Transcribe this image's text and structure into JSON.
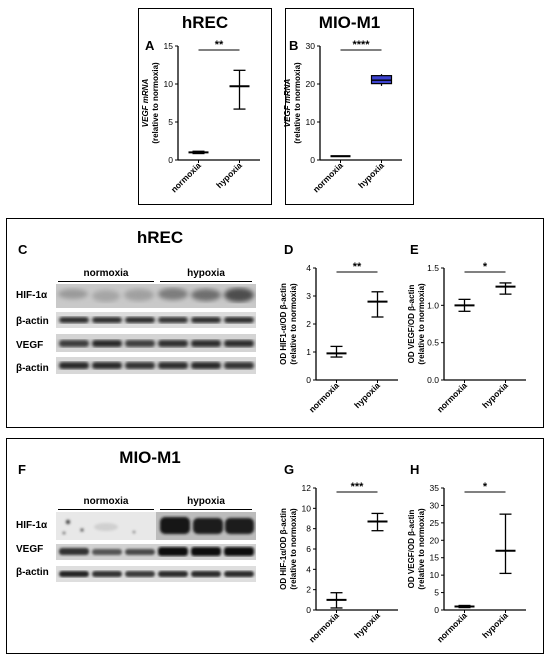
{
  "top": {
    "hrec": {
      "title": "hREC"
    },
    "mio": {
      "title": "MIO-M1"
    }
  },
  "mid": {
    "title": "hREC"
  },
  "bot": {
    "title": "MIO-M1"
  },
  "blots": {
    "group_normoxia": "normoxia",
    "group_hypoxia": "hypoxia",
    "hrec_rows": [
      "HIF-1α",
      "β-actin",
      "VEGF",
      "β-actin"
    ],
    "mio_rows": [
      "HIF-1α",
      "VEGF",
      "β-actin"
    ]
  },
  "chart_data": [
    {
      "panel": "A",
      "type": "scatter",
      "ylabel_lines": [
        "VEGF mRNA",
        "(relative to normoxia)"
      ],
      "categories": [
        "normoxia",
        "hypoxia"
      ],
      "yticks": [
        0,
        5,
        10,
        15
      ],
      "ylim": [
        0,
        15
      ],
      "series": [
        {
          "category": "normoxia",
          "mean": 1.0,
          "low": 0.85,
          "high": 1.15
        },
        {
          "category": "hypoxia",
          "mean": 9.7,
          "low": 6.7,
          "high": 11.8
        }
      ],
      "significance": "**"
    },
    {
      "panel": "B",
      "type": "box",
      "ylabel_lines": [
        "VEGF mRNA",
        "(relative to normoxia)"
      ],
      "categories": [
        "normoxia",
        "hypoxia"
      ],
      "yticks": [
        0,
        10,
        20,
        30
      ],
      "ylim": [
        0,
        30
      ],
      "series": [
        {
          "category": "normoxia",
          "median": 1.0,
          "q1": 1.0,
          "q3": 1.0,
          "min": 1.0,
          "max": 1.0
        },
        {
          "category": "hypoxia",
          "median": 21.0,
          "q1": 20.1,
          "q3": 22.2,
          "min": 19.5,
          "max": 22.6
        }
      ],
      "box_color": "#3d43d0",
      "significance": "****"
    },
    {
      "panel": "D",
      "type": "scatter",
      "ylabel_lines": [
        "OD HIF1-α/OD β-actin",
        "(relative to normoxia)"
      ],
      "categories": [
        "normoxia",
        "hypoxia"
      ],
      "yticks": [
        0,
        1,
        2,
        3,
        4
      ],
      "ylim": [
        0,
        4
      ],
      "series": [
        {
          "category": "normoxia",
          "mean": 0.95,
          "low": 0.82,
          "high": 1.2
        },
        {
          "category": "hypoxia",
          "mean": 2.8,
          "low": 2.25,
          "high": 3.15
        }
      ],
      "significance": "**"
    },
    {
      "panel": "E",
      "type": "scatter",
      "ylabel_lines": [
        "OD VEGF/OD β-actin",
        "(relative to normoxia)"
      ],
      "categories": [
        "normoxia",
        "hypoxia"
      ],
      "yticks": [
        "0.0",
        "0.5",
        "1.0",
        "1.5"
      ],
      "ylim": [
        0,
        1.5
      ],
      "series": [
        {
          "category": "normoxia",
          "mean": 1.0,
          "low": 0.92,
          "high": 1.08
        },
        {
          "category": "hypoxia",
          "mean": 1.25,
          "low": 1.15,
          "high": 1.3
        }
      ],
      "significance": "*"
    },
    {
      "panel": "G",
      "type": "scatter",
      "ylabel_lines": [
        "OD HIF-1α/OD β-actin",
        "(relative to normoxia)"
      ],
      "categories": [
        "normoxia",
        "hypoxia"
      ],
      "yticks": [
        0,
        2,
        4,
        6,
        8,
        10,
        12
      ],
      "ylim": [
        0,
        12
      ],
      "series": [
        {
          "category": "normoxia",
          "mean": 1.0,
          "low": 0.2,
          "high": 1.7
        },
        {
          "category": "hypoxia",
          "mean": 8.7,
          "low": 7.8,
          "high": 9.5
        }
      ],
      "significance": "***"
    },
    {
      "panel": "H",
      "type": "scatter",
      "ylabel_lines": [
        "OD VEGF/OD β-actin",
        "(relative to normoxia)"
      ],
      "categories": [
        "normoxia",
        "hypoxia"
      ],
      "yticks": [
        0,
        5,
        10,
        15,
        20,
        25,
        30,
        35
      ],
      "ylim": [
        0,
        35
      ],
      "series": [
        {
          "category": "normoxia",
          "mean": 1.0,
          "low": 0.7,
          "high": 1.3
        },
        {
          "category": "hypoxia",
          "mean": 17.0,
          "low": 10.5,
          "high": 27.5
        }
      ],
      "significance": "*"
    }
  ]
}
